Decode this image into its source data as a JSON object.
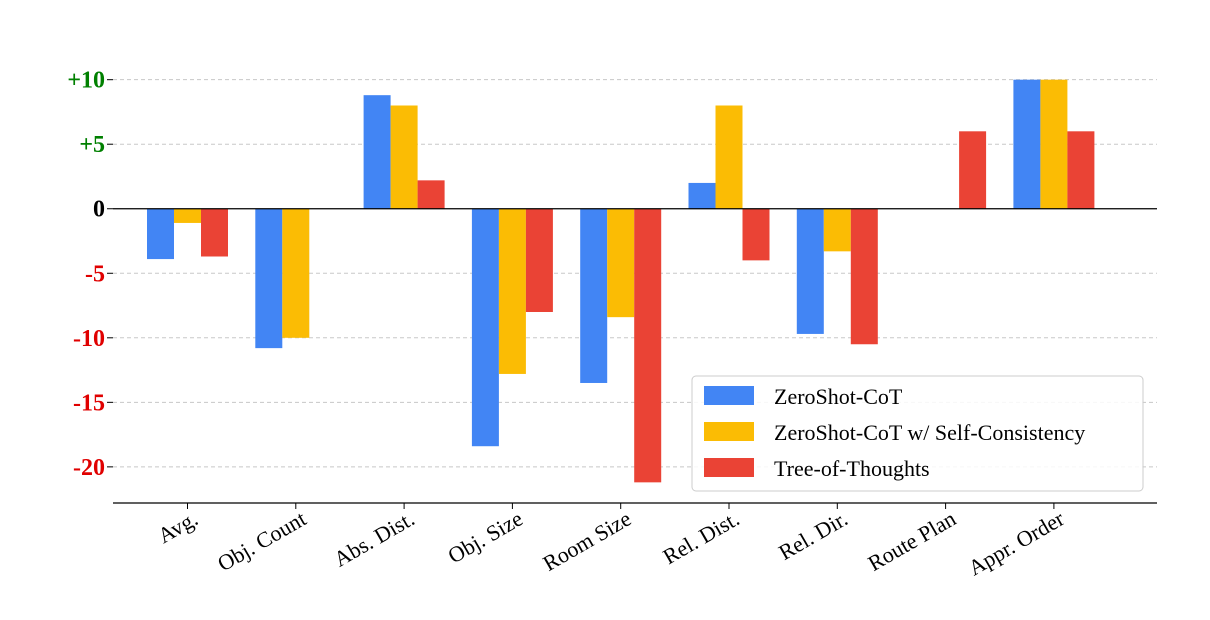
{
  "chart_data": {
    "type": "bar",
    "categories": [
      "Avg.",
      "Obj. Count",
      "Abs. Dist.",
      "Obj. Size",
      "Room Size",
      "Rel. Dist.",
      "Rel. Dir.",
      "Route Plan",
      "Appr. Order"
    ],
    "series": [
      {
        "name": "ZeroShot-CoT",
        "color": "#4285F4",
        "values": [
          -3.9,
          -10.8,
          8.8,
          -18.4,
          -13.5,
          2.0,
          -9.7,
          0,
          10.0
        ]
      },
      {
        "name": "ZeroShot-CoT w/ Self-Consistency",
        "color": "#FBBC04",
        "values": [
          -1.1,
          -10.0,
          8.0,
          -12.8,
          -8.4,
          8.0,
          -3.3,
          0,
          10.0
        ]
      },
      {
        "name": "Tree-of-Thoughts",
        "color": "#EA4335",
        "values": [
          -3.7,
          0,
          2.2,
          -8.0,
          -21.2,
          -4.0,
          -10.5,
          6.0,
          6.0
        ]
      }
    ],
    "yticks": [
      {
        "value": 10,
        "label": "+10",
        "color": "#008000"
      },
      {
        "value": 5,
        "label": "+5",
        "color": "#008000"
      },
      {
        "value": 0,
        "label": "0",
        "color": "#000000"
      },
      {
        "value": -5,
        "label": "-5",
        "color": "#E00000"
      },
      {
        "value": -10,
        "label": "-10",
        "color": "#E00000"
      },
      {
        "value": -15,
        "label": "-15",
        "color": "#E00000"
      },
      {
        "value": -20,
        "label": "-20",
        "color": "#E00000"
      }
    ],
    "ylim": [
      -22.8,
      12.3
    ],
    "grid": "horizontal-dashed",
    "legend_position": "lower-right",
    "title": "",
    "xlabel": "",
    "ylabel": ""
  }
}
